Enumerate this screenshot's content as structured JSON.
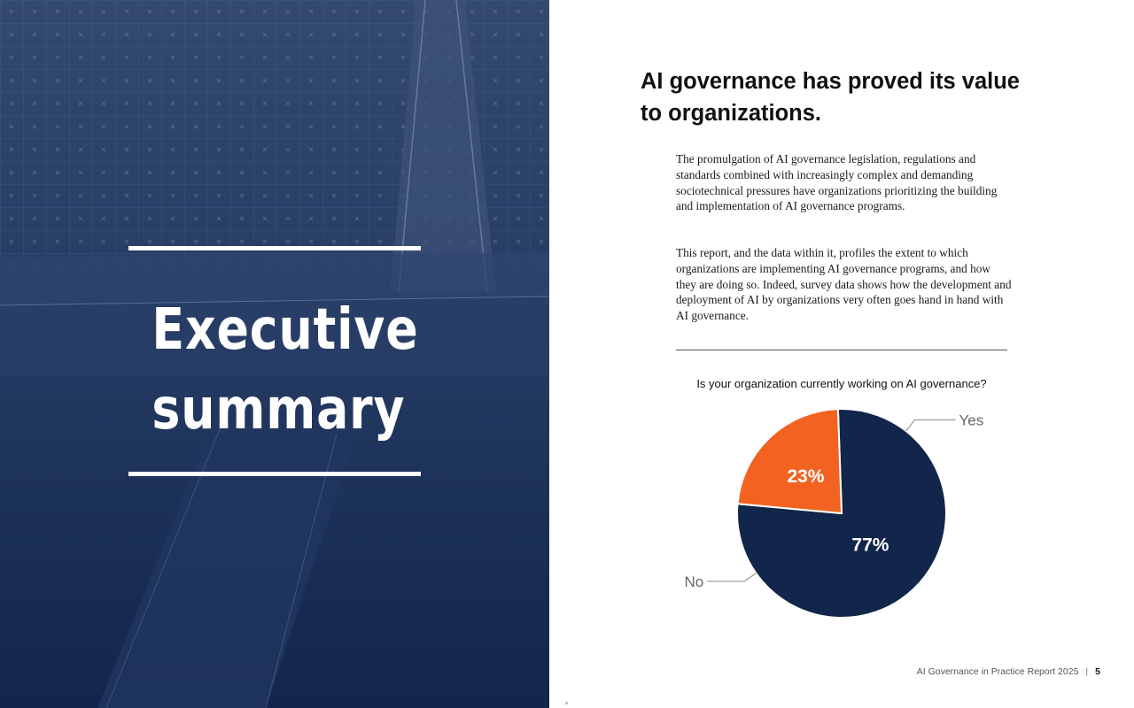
{
  "title_panel": {
    "line1": "Executive",
    "line2": "summary"
  },
  "headline": "AI governance has proved its value to organizations.",
  "paragraphs": [
    "The promulgation of AI governance legislation, regulations and standards combined with increasingly complex and demanding sociotechnical pressures have organizations prioritizing the building and implementation of AI governance programs.",
    "This report, and the data within it, profiles the extent to which organizations are implementing AI governance programs, and how they are doing so. Indeed, survey data shows how the development and deployment of AI by organizations very often goes hand in hand with AI governance."
  ],
  "chart_data": {
    "type": "pie",
    "title": "Is your organization currently working on AI governance?",
    "categories": [
      "Yes",
      "No"
    ],
    "values": [
      77,
      23
    ],
    "value_labels": [
      "77%",
      "23%"
    ],
    "colors": [
      "#12254a",
      "#f26322"
    ]
  },
  "footer": {
    "report_name": "AI Governance in Practice Report 2025",
    "separator": "|",
    "page_number": "5"
  },
  "colors": {
    "navy": "#12254a",
    "orange": "#f26322"
  }
}
